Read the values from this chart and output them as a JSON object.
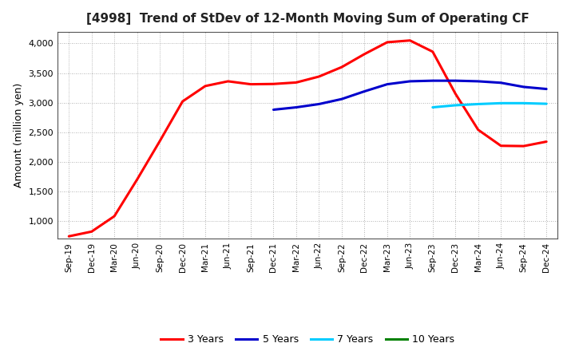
{
  "title": "[4998]  Trend of StDev of 12-Month Moving Sum of Operating CF",
  "ylabel": "Amount (million yen)",
  "ylim": [
    700,
    4200
  ],
  "yticks": [
    1000,
    1500,
    2000,
    2500,
    3000,
    3500,
    4000
  ],
  "background_color": "#ffffff",
  "grid_color": "#999999",
  "x_labels": [
    "Sep-19",
    "Dec-19",
    "Mar-20",
    "Jun-20",
    "Sep-20",
    "Dec-20",
    "Mar-21",
    "Jun-21",
    "Sep-21",
    "Dec-21",
    "Mar-22",
    "Jun-22",
    "Sep-22",
    "Dec-22",
    "Mar-23",
    "Jun-23",
    "Sep-23",
    "Dec-23",
    "Mar-24",
    "Jun-24",
    "Sep-24",
    "Dec-24"
  ],
  "series": {
    "3 Years": {
      "color": "#ff0000",
      "data_x": [
        0,
        1,
        2,
        3,
        4,
        5,
        6,
        7,
        8,
        9,
        10,
        11,
        12,
        13,
        14,
        15,
        16,
        17,
        18,
        19,
        20,
        21
      ],
      "data_y": [
        740,
        820,
        1080,
        1700,
        2350,
        3020,
        3280,
        3360,
        3310,
        3315,
        3340,
        3440,
        3600,
        3820,
        4020,
        4050,
        3860,
        3150,
        2540,
        2270,
        2265,
        2340
      ]
    },
    "5 Years": {
      "color": "#0000cc",
      "data_x": [
        9,
        10,
        11,
        12,
        13,
        14,
        15,
        16,
        17,
        18,
        19,
        20,
        21
      ],
      "data_y": [
        2880,
        2920,
        2975,
        3060,
        3190,
        3310,
        3360,
        3370,
        3370,
        3360,
        3335,
        3265,
        3230
      ]
    },
    "7 Years": {
      "color": "#00ccff",
      "data_x": [
        16,
        17,
        18,
        19,
        20,
        21
      ],
      "data_y": [
        2920,
        2955,
        2975,
        2990,
        2990,
        2980
      ]
    },
    "10 Years": {
      "color": "#008000",
      "data_x": [],
      "data_y": []
    }
  },
  "legend_labels": [
    "3 Years",
    "5 Years",
    "7 Years",
    "10 Years"
  ],
  "legend_colors": [
    "#ff0000",
    "#0000cc",
    "#00ccff",
    "#008000"
  ],
  "title_fontsize": 11,
  "ylabel_fontsize": 9,
  "tick_fontsize": 8,
  "xtick_fontsize": 7.5,
  "linewidth": 2.2
}
